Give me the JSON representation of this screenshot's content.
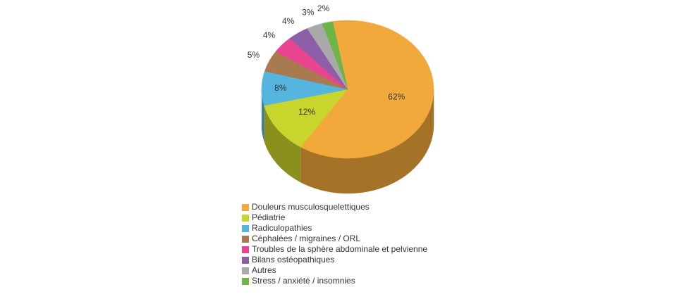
{
  "chart_data": {
    "type": "pie3d",
    "categories": [
      "Douleurs musculosquelettiques",
      "Pédiatrie",
      "Radiculopathies",
      "Céphalées / migraines / ORL",
      "Troubles de la sphère abdominale et pelvienne",
      "Bilans ostéopathiques",
      "Autres",
      "Stress / anxiété / insomnies"
    ],
    "values": [
      62,
      12,
      8,
      5,
      4,
      4,
      3,
      2
    ],
    "value_labels": [
      "62%",
      "12%",
      "8%",
      "5%",
      "4%",
      "4%",
      "3%",
      "2%"
    ],
    "colors": [
      "#f2a93b",
      "#c9d42c",
      "#55b5de",
      "#a97a4f",
      "#e8448f",
      "#8e5ea8",
      "#a9a9a9",
      "#6db547"
    ],
    "legend": "bottom"
  }
}
